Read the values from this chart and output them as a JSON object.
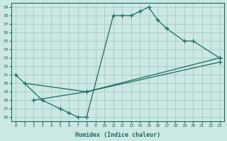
{
  "xlabel": "Humidex (Indice chaleur)",
  "ylabel": "",
  "xlim": [
    -0.5,
    23.5
  ],
  "ylim": [
    25.5,
    39.5
  ],
  "xticks": [
    0,
    1,
    2,
    3,
    4,
    5,
    6,
    7,
    8,
    9,
    10,
    11,
    12,
    13,
    14,
    15,
    16,
    17,
    18,
    19,
    20,
    21,
    22,
    23
  ],
  "yticks": [
    26,
    27,
    28,
    29,
    30,
    31,
    32,
    33,
    34,
    35,
    36,
    37,
    38,
    39
  ],
  "bg_color": "#cce8e4",
  "grid_color": "#a8cfc8",
  "line_color": "#1a6b60",
  "line1_x": [
    0,
    3,
    5,
    6,
    7,
    8,
    11,
    12,
    13,
    14,
    15,
    16,
    17,
    19,
    20,
    23
  ],
  "line1_y": [
    31,
    28,
    27,
    26.5,
    26,
    26,
    38,
    38,
    38,
    38.5,
    39,
    37.5,
    36.5,
    35,
    35,
    33
  ],
  "line2_x": [
    1,
    8,
    23
  ],
  "line2_y": [
    30,
    29,
    33
  ],
  "line3_x": [
    2,
    8,
    23
  ],
  "line3_y": [
    28,
    29,
    32.5
  ]
}
